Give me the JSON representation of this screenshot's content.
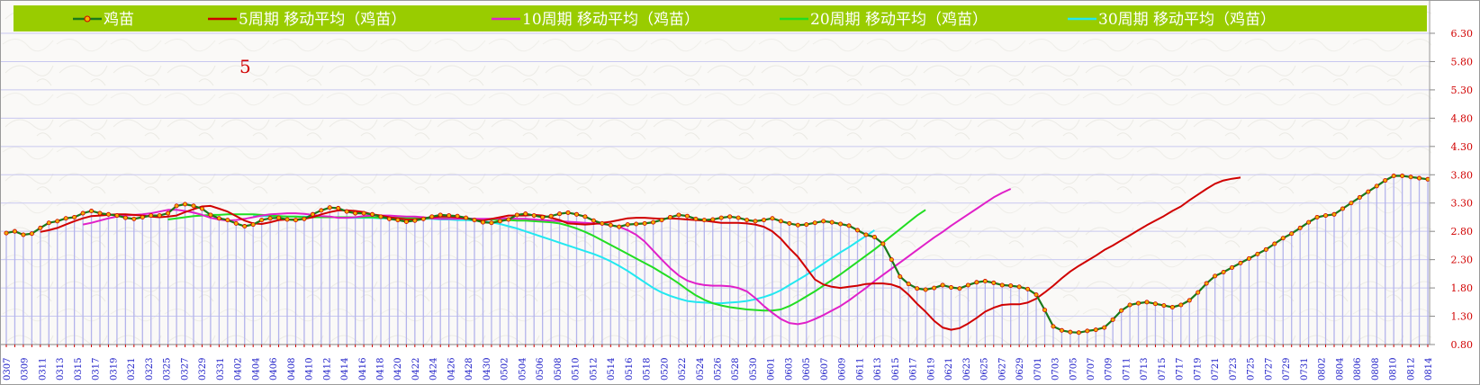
{
  "colors": {
    "legend_bg": "#99cc00",
    "background": "#faf9f7",
    "grid": "#c8c8f0",
    "bars": "#b4b4ec",
    "price": "#1a7a1a",
    "marker_fill": "#f2b400",
    "marker_stroke": "#d00000",
    "ytick": "#d10000",
    "xtick": "#2020c8",
    "annotation": "#d10000"
  },
  "annotation": "5",
  "chart_data": {
    "type": "line",
    "y_axis_position": "right",
    "ylim": [
      0.8,
      6.3
    ],
    "yticks": [
      "6.30",
      "5.80",
      "5.30",
      "4.80",
      "4.30",
      "3.80",
      "3.30",
      "2.80",
      "2.30",
      "1.80",
      "1.30",
      "0.80"
    ],
    "xticks": [
      "0307",
      "0309",
      "0311",
      "0313",
      "0315",
      "0317",
      "0319",
      "0321",
      "0323",
      "0325",
      "0327",
      "0329",
      "0331",
      "0402",
      "0404",
      "0406",
      "0408",
      "0410",
      "0412",
      "0414",
      "0416",
      "0418",
      "0420",
      "0422",
      "0424",
      "0426",
      "0428",
      "0430",
      "0502",
      "0504",
      "0506",
      "0508",
      "0510",
      "0512",
      "0514",
      "0516",
      "0518",
      "0520",
      "0522",
      "0524",
      "0526",
      "0528",
      "0530",
      "0601",
      "0603",
      "0605",
      "0607",
      "0609",
      "0611",
      "0613",
      "0615",
      "0617",
      "0619",
      "0621",
      "0623",
      "0625",
      "0627",
      "0629",
      "0701",
      "0703",
      "0705",
      "0707",
      "0709",
      "0711",
      "0713",
      "0715",
      "0717",
      "0719",
      "0721",
      "0723",
      "0725",
      "0727",
      "0729",
      "0731",
      "0802",
      "0804",
      "0806",
      "0808",
      "0810",
      "0812",
      "0814"
    ],
    "legend_position": "top",
    "grid": true,
    "series": [
      {
        "name": "鸡苗",
        "color": "#1a7a1a",
        "markers": true,
        "values": [
          2.77,
          2.8,
          2.74,
          2.76,
          2.86,
          2.95,
          2.98,
          3.03,
          3.05,
          3.12,
          3.16,
          3.12,
          3.1,
          3.08,
          3.04,
          3.02,
          3.05,
          3.08,
          3.08,
          3.12,
          3.25,
          3.28,
          3.25,
          3.2,
          3.09,
          3.03,
          3.0,
          2.94,
          2.89,
          2.92,
          3.0,
          3.03,
          3.04,
          3.01,
          3.0,
          3.02,
          3.1,
          3.17,
          3.22,
          3.21,
          3.15,
          3.12,
          3.12,
          3.1,
          3.06,
          3.02,
          3.0,
          2.97,
          2.99,
          3.02,
          3.06,
          3.09,
          3.08,
          3.07,
          3.04,
          3.0,
          2.96,
          2.95,
          2.98,
          3.01,
          3.09,
          3.11,
          3.08,
          3.05,
          3.07,
          3.11,
          3.13,
          3.1,
          3.06,
          2.99,
          2.94,
          2.91,
          2.88,
          2.92,
          2.93,
          2.94,
          2.96,
          3.0,
          3.05,
          3.09,
          3.07,
          3.02,
          3.0,
          3.01,
          3.04,
          3.06,
          3.04,
          3.0,
          2.98,
          3.0,
          3.03,
          2.98,
          2.94,
          2.91,
          2.92,
          2.95,
          2.98,
          2.96,
          2.93,
          2.9,
          2.82,
          2.74,
          2.7,
          2.58,
          2.3,
          2.0,
          1.87,
          1.79,
          1.77,
          1.8,
          1.85,
          1.81,
          1.79,
          1.85,
          1.9,
          1.92,
          1.89,
          1.85,
          1.84,
          1.82,
          1.78,
          1.68,
          1.41,
          1.12,
          1.05,
          1.02,
          1.01,
          1.04,
          1.06,
          1.1,
          1.24,
          1.4,
          1.5,
          1.53,
          1.55,
          1.52,
          1.49,
          1.46,
          1.5,
          1.58,
          1.72,
          1.88,
          2.01,
          2.08,
          2.16,
          2.24,
          2.32,
          2.4,
          2.48,
          2.58,
          2.68,
          2.76,
          2.86,
          2.96,
          3.05,
          3.08,
          3.1,
          3.2,
          3.3,
          3.4,
          3.5,
          3.6,
          3.7,
          3.78,
          3.78,
          3.76,
          3.74,
          3.72
        ]
      },
      {
        "name": "5周期 移动平均（鸡苗）",
        "color": "#d00000",
        "start": 4,
        "values": [
          2.79,
          2.82,
          2.86,
          2.92,
          2.98,
          3.03,
          3.07,
          3.08,
          3.09,
          3.1,
          3.1,
          3.09,
          3.08,
          3.06,
          3.05,
          3.06,
          3.08,
          3.14,
          3.19,
          3.24,
          3.25,
          3.2,
          3.15,
          3.07,
          2.99,
          2.94,
          2.93,
          2.96,
          3.0,
          3.01,
          3.01,
          3.02,
          3.05,
          3.1,
          3.14,
          3.17,
          3.17,
          3.16,
          3.14,
          3.1,
          3.08,
          3.05,
          3.03,
          3.01,
          3.01,
          3.03,
          3.05,
          3.06,
          3.06,
          3.05,
          3.03,
          3.0,
          2.99,
          3.02,
          3.05,
          3.08,
          3.08,
          3.08,
          3.09,
          3.08,
          3.04,
          3.0,
          2.94,
          2.93,
          2.92,
          2.93,
          2.95,
          2.97,
          3.0,
          3.03,
          3.04,
          3.04,
          3.03,
          3.02,
          3.03,
          3.02,
          3.01,
          3.0,
          2.99,
          2.97,
          2.95,
          2.95,
          2.95,
          2.94,
          2.92,
          2.88,
          2.8,
          2.67,
          2.5,
          2.35,
          2.15,
          1.95,
          1.86,
          1.82,
          1.8,
          1.82,
          1.84,
          1.87,
          1.88,
          1.88,
          1.86,
          1.81,
          1.68,
          1.52,
          1.38,
          1.22,
          1.1,
          1.06,
          1.09,
          1.17,
          1.27,
          1.38,
          1.45,
          1.5,
          1.51,
          1.51,
          1.54,
          1.61,
          1.72,
          1.84,
          1.97,
          2.09,
          2.19,
          2.28,
          2.37,
          2.47,
          2.55,
          2.64,
          2.73,
          2.82,
          2.91,
          2.99,
          3.07,
          3.16,
          3.24,
          3.35,
          3.45,
          3.55,
          3.64,
          3.7,
          3.73,
          3.75
        ]
      },
      {
        "name": "10周期 移动平均（鸡苗）",
        "color": "#e020c8",
        "start": 9,
        "values": [
          2.92,
          2.95,
          2.99,
          3.03,
          3.06,
          3.08,
          3.09,
          3.1,
          3.12,
          3.15,
          3.18,
          3.18,
          3.16,
          3.13,
          3.09,
          3.04,
          3.01,
          2.99,
          3.0,
          3.02,
          3.05,
          3.08,
          3.1,
          3.11,
          3.12,
          3.12,
          3.11,
          3.09,
          3.07,
          3.06,
          3.04,
          3.04,
          3.05,
          3.07,
          3.08,
          3.08,
          3.08,
          3.07,
          3.06,
          3.06,
          3.05,
          3.03,
          3.02,
          3.02,
          3.02,
          3.03,
          3.02,
          3.02,
          3.02,
          3.03,
          3.03,
          3.02,
          3.02,
          3.01,
          3.0,
          2.99,
          2.98,
          2.97,
          2.96,
          2.95,
          2.94,
          2.93,
          2.91,
          2.88,
          2.82,
          2.74,
          2.62,
          2.46,
          2.3,
          2.15,
          2.02,
          1.93,
          1.88,
          1.85,
          1.84,
          1.84,
          1.83,
          1.8,
          1.74,
          1.62,
          1.48,
          1.36,
          1.25,
          1.18,
          1.16,
          1.19,
          1.25,
          1.32,
          1.4,
          1.48,
          1.58,
          1.69,
          1.8,
          1.92,
          2.03,
          2.14,
          2.25,
          2.36,
          2.47,
          2.58,
          2.69,
          2.79,
          2.9,
          3.0,
          3.1,
          3.2,
          3.3,
          3.4,
          3.48,
          3.55
        ]
      },
      {
        "name": "20周期 移动平均（鸡苗）",
        "color": "#22dd22",
        "start": 19,
        "values": [
          3.01,
          3.03,
          3.05,
          3.07,
          3.08,
          3.09,
          3.09,
          3.1,
          3.1,
          3.1,
          3.1,
          3.09,
          3.08,
          3.07,
          3.06,
          3.06,
          3.05,
          3.05,
          3.05,
          3.05,
          3.05,
          3.05,
          3.05,
          3.05,
          3.05,
          3.04,
          3.04,
          3.04,
          3.04,
          3.04,
          3.03,
          3.03,
          3.03,
          3.03,
          3.03,
          3.02,
          3.02,
          3.01,
          3.01,
          3.0,
          3.0,
          2.99,
          2.99,
          2.98,
          2.97,
          2.96,
          2.94,
          2.9,
          2.85,
          2.79,
          2.72,
          2.64,
          2.56,
          2.48,
          2.4,
          2.32,
          2.24,
          2.16,
          2.07,
          1.98,
          1.88,
          1.77,
          1.67,
          1.59,
          1.53,
          1.49,
          1.46,
          1.44,
          1.42,
          1.41,
          1.4,
          1.4,
          1.42,
          1.48,
          1.56,
          1.65,
          1.74,
          1.84,
          1.94,
          2.04,
          2.15,
          2.26,
          2.37,
          2.48,
          2.6,
          2.72,
          2.84,
          2.96,
          3.08,
          3.18
        ]
      },
      {
        "name": "30周期 移动平均（鸡苗）",
        "color": "#22e8f0",
        "start": 29,
        "values": [
          3.07,
          3.07,
          3.07,
          3.07,
          3.06,
          3.06,
          3.06,
          3.05,
          3.05,
          3.05,
          3.05,
          3.04,
          3.04,
          3.04,
          3.04,
          3.03,
          3.03,
          3.03,
          3.03,
          3.02,
          3.02,
          3.02,
          3.01,
          3.01,
          3.0,
          3.0,
          2.99,
          2.98,
          2.96,
          2.93,
          2.89,
          2.85,
          2.8,
          2.75,
          2.7,
          2.65,
          2.6,
          2.55,
          2.5,
          2.45,
          2.4,
          2.34,
          2.27,
          2.19,
          2.1,
          2.0,
          1.9,
          1.8,
          1.72,
          1.66,
          1.61,
          1.57,
          1.55,
          1.54,
          1.53,
          1.53,
          1.54,
          1.55,
          1.57,
          1.6,
          1.64,
          1.69,
          1.76,
          1.85,
          1.94,
          2.03,
          2.13,
          2.23,
          2.33,
          2.43,
          2.52,
          2.62,
          2.72,
          2.82
        ]
      }
    ]
  }
}
